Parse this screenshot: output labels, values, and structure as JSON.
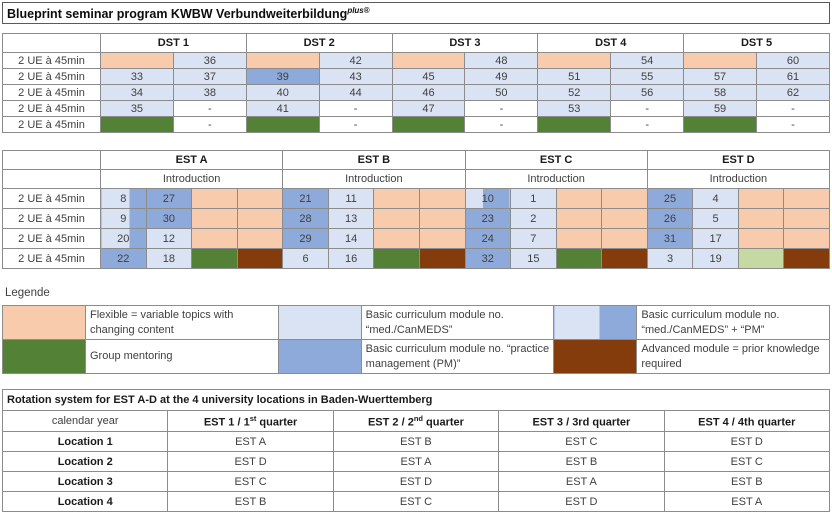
{
  "title": {
    "main": "Blueprint seminar program KWBW Verbundweiterbildung",
    "sup_italic": "plus",
    "sup_reg": "®"
  },
  "palette": {
    "flex": "#f8cbad",
    "med": "#dae3f3",
    "pm": "#8eaadb",
    "mentor": "#538135",
    "mentor_light": "#c6d9a2",
    "advanced": "#843c0c",
    "blank": "#ffffff",
    "border": "#8c8c8c"
  },
  "dst_table": {
    "row_label": "2 UE à 45min",
    "headers": [
      "DST 1",
      "DST 2",
      "DST 3",
      "DST 4",
      "DST 5"
    ],
    "rows": [
      [
        {
          "t": "flex",
          "v": ""
        },
        {
          "t": "med",
          "v": "36"
        },
        {
          "t": "flex",
          "v": ""
        },
        {
          "t": "med",
          "v": "42"
        },
        {
          "t": "flex",
          "v": ""
        },
        {
          "t": "med",
          "v": "48"
        },
        {
          "t": "flex",
          "v": ""
        },
        {
          "t": "med",
          "v": "54"
        },
        {
          "t": "flex",
          "v": ""
        },
        {
          "t": "med",
          "v": "60"
        }
      ],
      [
        {
          "t": "med",
          "v": "33"
        },
        {
          "t": "med",
          "v": "37"
        },
        {
          "t": "pm",
          "v": "39"
        },
        {
          "t": "med",
          "v": "43"
        },
        {
          "t": "med",
          "v": "45"
        },
        {
          "t": "med",
          "v": "49"
        },
        {
          "t": "med",
          "v": "51"
        },
        {
          "t": "med",
          "v": "55"
        },
        {
          "t": "med",
          "v": "57"
        },
        {
          "t": "med",
          "v": "61"
        }
      ],
      [
        {
          "t": "med",
          "v": "34"
        },
        {
          "t": "med",
          "v": "38"
        },
        {
          "t": "med",
          "v": "40"
        },
        {
          "t": "med",
          "v": "44"
        },
        {
          "t": "med",
          "v": "46"
        },
        {
          "t": "med",
          "v": "50"
        },
        {
          "t": "med",
          "v": "52"
        },
        {
          "t": "med",
          "v": "56"
        },
        {
          "t": "med",
          "v": "58"
        },
        {
          "t": "med",
          "v": "62"
        }
      ],
      [
        {
          "t": "med",
          "v": "35"
        },
        {
          "t": "blank",
          "v": "-"
        },
        {
          "t": "med",
          "v": "41"
        },
        {
          "t": "blank",
          "v": "-"
        },
        {
          "t": "med",
          "v": "47"
        },
        {
          "t": "blank",
          "v": "-"
        },
        {
          "t": "med",
          "v": "53"
        },
        {
          "t": "blank",
          "v": "-"
        },
        {
          "t": "med",
          "v": "59"
        },
        {
          "t": "blank",
          "v": "-"
        }
      ],
      [
        {
          "t": "mentor",
          "v": ""
        },
        {
          "t": "blank",
          "v": "-"
        },
        {
          "t": "mentor",
          "v": ""
        },
        {
          "t": "blank",
          "v": "-"
        },
        {
          "t": "mentor",
          "v": ""
        },
        {
          "t": "blank",
          "v": "-"
        },
        {
          "t": "mentor",
          "v": ""
        },
        {
          "t": "blank",
          "v": "-"
        },
        {
          "t": "mentor",
          "v": ""
        },
        {
          "t": "blank",
          "v": "-"
        }
      ]
    ]
  },
  "est_table": {
    "row_label": "2 UE à 45min",
    "headers": [
      "EST A",
      "EST B",
      "EST C",
      "EST D"
    ],
    "sub_header": "Introduction",
    "rows": [
      [
        {
          "t": "split60",
          "v": "8"
        },
        {
          "t": "pm",
          "v": "27"
        },
        {
          "t": "flex",
          "v": ""
        },
        {
          "t": "flex",
          "v": ""
        },
        {
          "t": "pm",
          "v": "21"
        },
        {
          "t": "med",
          "v": "11"
        },
        {
          "t": "flex",
          "v": ""
        },
        {
          "t": "flex",
          "v": ""
        },
        {
          "t": "split40",
          "v": "10"
        },
        {
          "t": "med",
          "v": "1"
        },
        {
          "t": "flex",
          "v": ""
        },
        {
          "t": "flex",
          "v": ""
        },
        {
          "t": "pm",
          "v": "25"
        },
        {
          "t": "med",
          "v": "4"
        },
        {
          "t": "flex",
          "v": ""
        },
        {
          "t": "flex",
          "v": ""
        }
      ],
      [
        {
          "t": "split60",
          "v": "9"
        },
        {
          "t": "pm",
          "v": "30"
        },
        {
          "t": "flex",
          "v": ""
        },
        {
          "t": "flex",
          "v": ""
        },
        {
          "t": "pm",
          "v": "28"
        },
        {
          "t": "med",
          "v": "13"
        },
        {
          "t": "flex",
          "v": ""
        },
        {
          "t": "flex",
          "v": ""
        },
        {
          "t": "pm",
          "v": "23"
        },
        {
          "t": "med",
          "v": "2"
        },
        {
          "t": "flex",
          "v": ""
        },
        {
          "t": "flex",
          "v": ""
        },
        {
          "t": "pm",
          "v": "26"
        },
        {
          "t": "med",
          "v": "5"
        },
        {
          "t": "flex",
          "v": ""
        },
        {
          "t": "flex",
          "v": ""
        }
      ],
      [
        {
          "t": "split60",
          "v": "20"
        },
        {
          "t": "med",
          "v": "12"
        },
        {
          "t": "flex",
          "v": ""
        },
        {
          "t": "flex",
          "v": ""
        },
        {
          "t": "pm",
          "v": "29"
        },
        {
          "t": "med",
          "v": "14"
        },
        {
          "t": "flex",
          "v": ""
        },
        {
          "t": "flex",
          "v": ""
        },
        {
          "t": "pm",
          "v": "24"
        },
        {
          "t": "med",
          "v": "7"
        },
        {
          "t": "flex",
          "v": ""
        },
        {
          "t": "flex",
          "v": ""
        },
        {
          "t": "pm",
          "v": "31"
        },
        {
          "t": "med",
          "v": "17"
        },
        {
          "t": "flex",
          "v": ""
        },
        {
          "t": "flex",
          "v": ""
        }
      ],
      [
        {
          "t": "pm",
          "v": "22"
        },
        {
          "t": "med",
          "v": "18"
        },
        {
          "t": "mentor",
          "v": ""
        },
        {
          "t": "advanced",
          "v": ""
        },
        {
          "t": "med",
          "v": "6"
        },
        {
          "t": "med",
          "v": "16"
        },
        {
          "t": "mentor",
          "v": ""
        },
        {
          "t": "advanced",
          "v": ""
        },
        {
          "t": "pm",
          "v": "32"
        },
        {
          "t": "med",
          "v": "15"
        },
        {
          "t": "mentor",
          "v": ""
        },
        {
          "t": "advanced",
          "v": ""
        },
        {
          "t": "med",
          "v": "3"
        },
        {
          "t": "med",
          "v": "19"
        },
        {
          "t": "mentor_light",
          "v": ""
        },
        {
          "t": "advanced",
          "v": ""
        }
      ]
    ]
  },
  "legend": {
    "title": "Legende",
    "rows": [
      [
        {
          "swatch": "flex",
          "text": "Flexible = variable topics with changing content"
        },
        {
          "swatch": "med",
          "text": "Basic curriculum module no. “med./CanMEDS”"
        },
        {
          "swatch": "split",
          "text": "Basic curriculum module no. “med./CanMEDS” + “PM”"
        }
      ],
      [
        {
          "swatch": "mentor",
          "text": "Group mentoring"
        },
        {
          "swatch": "pm",
          "text": "Basic curriculum module no. “practice management (PM)”"
        },
        {
          "swatch": "advanced",
          "text": "Advanced module = prior knowledge required"
        }
      ]
    ]
  },
  "rotation": {
    "title": "Rotation system for EST A-D at the 4 university locations in Baden-Wuerttemberg",
    "col0_header": "calendar year",
    "quarter_headers": [
      {
        "pre": "EST 1 / 1",
        "sup": "st",
        "post": " quarter"
      },
      {
        "pre": "EST 2 / 2",
        "sup": "nd",
        "post": " quarter"
      },
      {
        "pre": "EST 3 / 3rd",
        "sup": "",
        "post": " quarter"
      },
      {
        "pre": "EST 4 / 4th",
        "sup": "",
        "post": " quarter"
      }
    ],
    "rows": [
      {
        "label": "Location 1",
        "cells": [
          "EST A",
          "EST B",
          "EST C",
          "EST D"
        ]
      },
      {
        "label": "Location 2",
        "cells": [
          "EST D",
          "EST A",
          "EST B",
          "EST C"
        ]
      },
      {
        "label": "Location 3",
        "cells": [
          "EST C",
          "EST D",
          "EST A",
          "EST B"
        ]
      },
      {
        "label": "Location 4",
        "cells": [
          "EST B",
          "EST C",
          "EST D",
          "EST A"
        ]
      }
    ]
  }
}
